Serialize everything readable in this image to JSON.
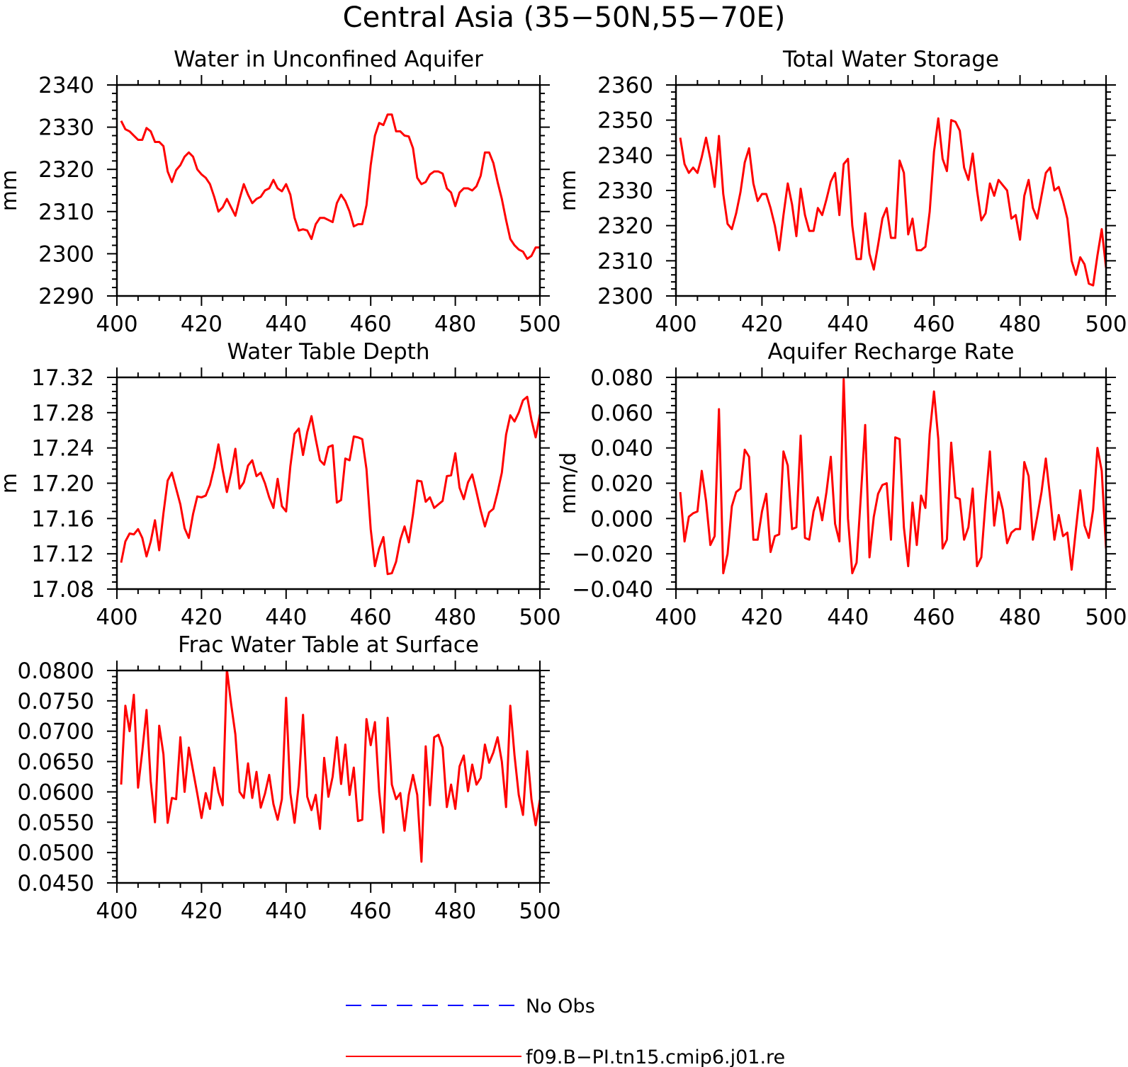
{
  "figure": {
    "title": "Central Asia (35−50N,55−70E)"
  },
  "legend": {
    "placement": "bottom-center",
    "entries": [
      {
        "label": "No Obs",
        "color": "#0000ff",
        "style": "dashed"
      },
      {
        "label": "f09.B−PI.tn15.cmip6.j01.re",
        "color": "#ff0000",
        "style": "solid"
      }
    ]
  },
  "chart_data": [
    {
      "type": "line",
      "title": "Water in Unconfined Aquifer",
      "ylabel": "mm",
      "xlim": [
        400,
        500
      ],
      "ylim": [
        2290,
        2340
      ],
      "xticks": [
        "400",
        "420",
        "440",
        "460",
        "480",
        "500"
      ],
      "yticks": [
        "2290",
        "2300",
        "2310",
        "2320",
        "2330",
        "2340"
      ],
      "series": [
        {
          "color": "#ff0000",
          "x0": 401,
          "values": [
            2331.5,
            2329.5,
            2329,
            2328,
            2327,
            2327,
            2329.8,
            2329,
            2326.5,
            2326.5,
            2325.5,
            2319.5,
            2317,
            2319.8,
            2321,
            2323,
            2324,
            2323,
            2320,
            2318.8,
            2318,
            2316.5,
            2313.5,
            2310,
            2311,
            2313,
            2311,
            2309,
            2313,
            2316.5,
            2314,
            2312,
            2313,
            2313.5,
            2315,
            2315.5,
            2317.5,
            2315.5,
            2314.8,
            2316.5,
            2314,
            2308.5,
            2305.5,
            2305.8,
            2305.5,
            2303.5,
            2307,
            2308.5,
            2308.5,
            2308,
            2307.5,
            2312,
            2314,
            2312.5,
            2310,
            2306.5,
            2307,
            2307,
            2311.5,
            2321,
            2328,
            2331,
            2330.5,
            2333,
            2333,
            2329,
            2329,
            2328,
            2327.8,
            2325,
            2318,
            2316.5,
            2317,
            2318.8,
            2319.5,
            2319.5,
            2319,
            2315.5,
            2314.5,
            2311.3,
            2314.5,
            2315.5,
            2315.5,
            2315,
            2316,
            2318.5,
            2324,
            2324,
            2321.5,
            2317,
            2313,
            2308,
            2303.5,
            2302,
            2301,
            2300.5,
            2298.8,
            2299.5,
            2301.5,
            2301.5
          ]
        }
      ]
    },
    {
      "type": "line",
      "title": "Total Water Storage",
      "ylabel": "mm",
      "xlim": [
        400,
        500
      ],
      "ylim": [
        2300,
        2360
      ],
      "xticks": [
        "400",
        "420",
        "440",
        "460",
        "480",
        "500"
      ],
      "yticks": [
        "2300",
        "2310",
        "2320",
        "2330",
        "2340",
        "2350",
        "2360"
      ],
      "series": [
        {
          "color": "#ff0000",
          "x0": 401,
          "values": [
            2345,
            2337.5,
            2335,
            2336.5,
            2335,
            2339.5,
            2345,
            2339,
            2331,
            2345.5,
            2329,
            2320.5,
            2319,
            2323.5,
            2329.5,
            2338,
            2342,
            2332,
            2327,
            2329,
            2329,
            2325,
            2320,
            2313,
            2323,
            2332,
            2326,
            2317,
            2330.5,
            2323,
            2318.5,
            2318.5,
            2325,
            2323,
            2327.5,
            2332.5,
            2335,
            2323,
            2337.5,
            2339,
            2320,
            2310.5,
            2310.5,
            2323.5,
            2312,
            2307.5,
            2314.5,
            2322,
            2325,
            2316.5,
            2316.5,
            2338.5,
            2335,
            2317.5,
            2322,
            2313,
            2313,
            2314,
            2324,
            2341,
            2350.5,
            2339,
            2335.5,
            2350,
            2349.5,
            2347,
            2336.5,
            2333,
            2340.5,
            2330,
            2321.5,
            2323.5,
            2332,
            2328.5,
            2333,
            2331.5,
            2330,
            2322,
            2323,
            2316,
            2328.5,
            2333,
            2325,
            2322,
            2328.5,
            2335,
            2336.5,
            2330,
            2331,
            2327,
            2322,
            2310,
            2306,
            2311,
            2309,
            2303.5,
            2303,
            2311.5,
            2319,
            2308
          ]
        }
      ]
    },
    {
      "type": "line",
      "title": "Water Table Depth",
      "ylabel": "m",
      "xlim": [
        400,
        500
      ],
      "ylim": [
        17.08,
        17.32
      ],
      "xticks": [
        "400",
        "420",
        "440",
        "460",
        "480",
        "500"
      ],
      "yticks": [
        "17.08",
        "17.12",
        "17.16",
        "17.20",
        "17.24",
        "17.28",
        "17.32"
      ],
      "series": [
        {
          "color": "#ff0000",
          "x0": 401,
          "values": [
            17.11,
            17.134,
            17.143,
            17.142,
            17.148,
            17.138,
            17.117,
            17.134,
            17.158,
            17.124,
            17.166,
            17.203,
            17.212,
            17.194,
            17.176,
            17.149,
            17.138,
            17.165,
            17.185,
            17.184,
            17.186,
            17.198,
            17.218,
            17.244,
            17.215,
            17.19,
            17.212,
            17.239,
            17.194,
            17.201,
            17.22,
            17.226,
            17.208,
            17.212,
            17.2,
            17.184,
            17.172,
            17.205,
            17.174,
            17.168,
            17.219,
            17.256,
            17.262,
            17.232,
            17.258,
            17.276,
            17.25,
            17.226,
            17.221,
            17.241,
            17.243,
            17.178,
            17.181,
            17.228,
            17.226,
            17.253,
            17.252,
            17.25,
            17.216,
            17.148,
            17.106,
            17.126,
            17.139,
            17.097,
            17.098,
            17.111,
            17.136,
            17.151,
            17.133,
            17.165,
            17.203,
            17.202,
            17.179,
            17.184,
            17.172,
            17.176,
            17.18,
            17.208,
            17.209,
            17.234,
            17.195,
            17.182,
            17.201,
            17.21,
            17.19,
            17.169,
            17.151,
            17.167,
            17.171,
            17.19,
            17.212,
            17.255,
            17.277,
            17.27,
            17.28,
            17.294,
            17.298,
            17.272,
            17.252,
            17.278
          ]
        }
      ]
    },
    {
      "type": "line",
      "title": "Aquifer Recharge Rate",
      "ylabel": "mm/d",
      "xlim": [
        400,
        500
      ],
      "ylim": [
        -0.04,
        0.08
      ],
      "xticks": [
        "400",
        "420",
        "440",
        "460",
        "480",
        "500"
      ],
      "yticks": [
        "−0.040",
        "−0.020",
        "0.000",
        "0.020",
        "0.040",
        "0.060",
        "0.080"
      ],
      "series": [
        {
          "color": "#ff0000",
          "x0": 401,
          "values": [
            0.015,
            -0.013,
            0.001,
            0.003,
            0.004,
            0.027,
            0.01,
            -0.015,
            -0.01,
            0.062,
            -0.031,
            -0.02,
            0.007,
            0.015,
            0.017,
            0.039,
            0.035,
            -0.012,
            -0.012,
            0.004,
            0.014,
            -0.019,
            -0.01,
            -0.009,
            0.038,
            0.03,
            -0.006,
            -0.005,
            0.047,
            -0.011,
            -0.012,
            0.004,
            0.012,
            -0.001,
            0.015,
            0.035,
            -0.003,
            -0.013,
            0.079,
            0,
            -0.031,
            -0.025,
            0.013,
            0.053,
            -0.022,
            0.001,
            0.014,
            0.019,
            0.02,
            -0.012,
            0.046,
            0.045,
            -0.005,
            -0.027,
            0.009,
            -0.015,
            0.013,
            0.006,
            0.048,
            0.072,
            0.045,
            -0.017,
            -0.012,
            0.043,
            0.012,
            0.011,
            -0.012,
            -0.005,
            0.017,
            -0.027,
            -0.022,
            0.01,
            0.038,
            -0.004,
            0.015,
            0.005,
            -0.014,
            -0.008,
            -0.006,
            -0.006,
            0.032,
            0.024,
            -0.012,
            0.001,
            0.015,
            0.034,
            0.012,
            -0.012,
            0.002,
            -0.01,
            -0.008,
            -0.029,
            -0.006,
            0.016,
            -0.004,
            -0.011,
            0.005,
            0.04,
            0.027,
            -0.017
          ]
        }
      ]
    },
    {
      "type": "line",
      "title": "Frac Water Table at Surface",
      "ylabel": "",
      "xlim": [
        400,
        500
      ],
      "ylim": [
        0.045,
        0.08
      ],
      "xticks": [
        "400",
        "420",
        "440",
        "460",
        "480",
        "500"
      ],
      "yticks": [
        "0.0450",
        "0.0500",
        "0.0550",
        "0.0600",
        "0.0650",
        "0.0700",
        "0.0750",
        "0.0800"
      ],
      "series": [
        {
          "color": "#ff0000",
          "x0": 401,
          "values": [
            0.0612,
            0.0742,
            0.07,
            0.076,
            0.0607,
            0.0667,
            0.0735,
            0.0617,
            0.055,
            0.0709,
            0.0662,
            0.0549,
            0.059,
            0.0588,
            0.069,
            0.06,
            0.0673,
            0.0635,
            0.0597,
            0.0557,
            0.0598,
            0.0572,
            0.064,
            0.06,
            0.0578,
            0.0802,
            0.0745,
            0.0695,
            0.06,
            0.059,
            0.0647,
            0.059,
            0.0633,
            0.0574,
            0.0597,
            0.0628,
            0.058,
            0.0554,
            0.0588,
            0.0755,
            0.0598,
            0.0549,
            0.0613,
            0.0727,
            0.0592,
            0.057,
            0.0595,
            0.0539,
            0.0656,
            0.0592,
            0.0625,
            0.069,
            0.0613,
            0.0678,
            0.0595,
            0.064,
            0.0552,
            0.0554,
            0.072,
            0.0677,
            0.0715,
            0.06,
            0.0533,
            0.0722,
            0.0612,
            0.0588,
            0.0598,
            0.0536,
            0.0595,
            0.0628,
            0.0595,
            0.0485,
            0.0675,
            0.0578,
            0.069,
            0.0694,
            0.0673,
            0.0575,
            0.0612,
            0.0572,
            0.0642,
            0.066,
            0.0601,
            0.0645,
            0.0612,
            0.0623,
            0.0678,
            0.0648,
            0.0665,
            0.069,
            0.065,
            0.0575,
            0.0742,
            0.066,
            0.0595,
            0.0562,
            0.0667,
            0.0588,
            0.0545,
            0.0587
          ]
        }
      ]
    }
  ]
}
